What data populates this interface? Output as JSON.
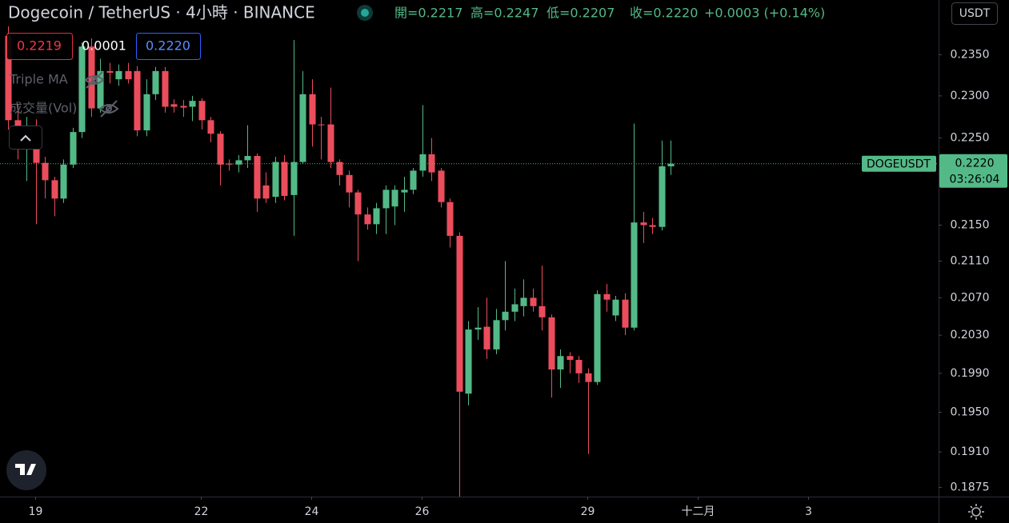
{
  "chart_data": {
    "type": "candlestick",
    "title": "Dogecoin / TetherUS · 4小時 · BINANCE",
    "legend_values": [
      "開=0.2217",
      "高=0.2247",
      "低=0.2207",
      "收=0.2220",
      "+0.0003 (+0.14%)"
    ],
    "up_color": "#53b987",
    "down_color": "#eb4d5c",
    "log_scale": true,
    "grid": false,
    "x": [
      0,
      1,
      2,
      3,
      4,
      5,
      6,
      7,
      8,
      9,
      10,
      11,
      12,
      13,
      14,
      15,
      16,
      17,
      18,
      19,
      20,
      21,
      22,
      23,
      24,
      25,
      26,
      27,
      28,
      29,
      30,
      31,
      32,
      33,
      34,
      35,
      36,
      37,
      38,
      39,
      40,
      41,
      42,
      43,
      44,
      45,
      46,
      47,
      48,
      49,
      50,
      51,
      52,
      53,
      54,
      55,
      56,
      57,
      58,
      59,
      60,
      61,
      62,
      63,
      64,
      65,
      66,
      67,
      68,
      69,
      70,
      71,
      72
    ],
    "open": [
      0.2373,
      0.2271,
      0.224,
      0.2264,
      0.2221,
      0.2201,
      0.218,
      0.2219,
      0.2257,
      0.236,
      0.2285,
      0.233,
      0.232,
      0.233,
      0.233,
      0.2259,
      0.2302,
      0.233,
      0.229,
      0.2288,
      0.2287,
      0.2294,
      0.2271,
      0.2255,
      0.222,
      0.2219,
      0.2224,
      0.2229,
      0.2195,
      0.2182,
      0.2222,
      0.2184,
      0.2222,
      0.2302,
      0.2266,
      0.2266,
      0.2222,
      0.2207,
      0.2187,
      0.2162,
      0.2151,
      0.2169,
      0.2171,
      0.2187,
      0.219,
      0.2212,
      0.2231,
      0.2212,
      0.2176,
      0.2138,
      0.1969,
      0.2036,
      0.2039,
      0.2015,
      0.2046,
      0.2055,
      0.2061,
      0.207,
      0.2061,
      0.2049,
      0.1994,
      0.2008,
      0.2004,
      0.199,
      0.1981,
      0.2074,
      0.2051,
      0.2068,
      0.2038,
      0.2153,
      0.215,
      0.2148,
      0.2217
    ],
    "high": [
      0.2385,
      0.229,
      0.2275,
      0.2272,
      0.2228,
      0.2205,
      0.2225,
      0.2262,
      0.2365,
      0.237,
      0.2345,
      0.234,
      0.2338,
      0.234,
      0.2336,
      0.232,
      0.2335,
      0.2335,
      0.2296,
      0.2295,
      0.23,
      0.2297,
      0.2275,
      0.2258,
      0.2225,
      0.223,
      0.2265,
      0.2232,
      0.221,
      0.2228,
      0.223,
      0.2368,
      0.233,
      0.232,
      0.2275,
      0.231,
      0.2225,
      0.2212,
      0.219,
      0.217,
      0.2175,
      0.2195,
      0.2195,
      0.2205,
      0.2215,
      0.2289,
      0.225,
      0.2215,
      0.218,
      0.2142,
      0.2045,
      0.206,
      0.207,
      0.2058,
      0.211,
      0.208,
      0.209,
      0.208,
      0.2105,
      0.2052,
      0.2015,
      0.2012,
      0.2008,
      0.1995,
      0.2078,
      0.2085,
      0.2072,
      0.2075,
      0.2267,
      0.2165,
      0.2158,
      0.2247,
      0.2247
    ],
    "low": [
      0.226,
      0.2225,
      0.22,
      0.2151,
      0.218,
      0.216,
      0.2175,
      0.2215,
      0.225,
      0.2275,
      0.228,
      0.2315,
      0.2312,
      0.2315,
      0.2252,
      0.2252,
      0.2295,
      0.228,
      0.228,
      0.2275,
      0.227,
      0.226,
      0.2245,
      0.2195,
      0.2212,
      0.221,
      0.2215,
      0.2165,
      0.2175,
      0.2175,
      0.2178,
      0.2138,
      0.222,
      0.224,
      0.2225,
      0.2215,
      0.2195,
      0.217,
      0.211,
      0.2145,
      0.214,
      0.214,
      0.215,
      0.2165,
      0.2185,
      0.2205,
      0.22,
      0.217,
      0.2125,
      0.1866,
      0.1957,
      0.2025,
      0.2005,
      0.201,
      0.2035,
      0.2045,
      0.205,
      0.2055,
      0.2035,
      0.1965,
      0.1975,
      0.199,
      0.198,
      0.1908,
      0.1978,
      0.2055,
      0.2045,
      0.203,
      0.2035,
      0.213,
      0.214,
      0.2144,
      0.2207
    ],
    "close": [
      0.2271,
      0.224,
      0.2262,
      0.2221,
      0.2201,
      0.218,
      0.2219,
      0.2257,
      0.236,
      0.2285,
      0.233,
      0.2328,
      0.233,
      0.232,
      0.2259,
      0.2302,
      0.233,
      0.2287,
      0.2287,
      0.2286,
      0.2294,
      0.2271,
      0.2255,
      0.2219,
      0.2219,
      0.2224,
      0.2229,
      0.218,
      0.218,
      0.2222,
      0.2183,
      0.2222,
      0.2302,
      0.2266,
      0.2265,
      0.2222,
      0.2207,
      0.2187,
      0.2162,
      0.2151,
      0.2169,
      0.219,
      0.219,
      0.219,
      0.2212,
      0.2231,
      0.221,
      0.2176,
      0.2138,
      0.1971,
      0.2036,
      0.2038,
      0.2015,
      0.2046,
      0.2055,
      0.2063,
      0.207,
      0.2061,
      0.2049,
      0.1994,
      0.2008,
      0.2004,
      0.199,
      0.1981,
      0.2074,
      0.2068,
      0.2068,
      0.2038,
      0.2153,
      0.215,
      0.2148,
      0.2217,
      0.222
    ],
    "xlim": [
      -0.87,
      101.13
    ],
    "xticks": [
      {
        "value": 3,
        "label": "19"
      },
      {
        "value": 21,
        "label": "22"
      },
      {
        "value": 33,
        "label": "24"
      },
      {
        "value": 45,
        "label": "26"
      },
      {
        "value": 63,
        "label": "29"
      },
      {
        "value": 75,
        "label": "十二月"
      },
      {
        "value": 87,
        "label": "3"
      }
    ],
    "ylim": [
      0.1866,
      0.2418
    ],
    "yticks": [
      {
        "value": 0.235,
        "label": "0.2350"
      },
      {
        "value": 0.23,
        "label": "0.2300"
      },
      {
        "value": 0.225,
        "label": "0.2250"
      },
      {
        "value": 0.215,
        "label": "0.2150"
      },
      {
        "value": 0.211,
        "label": "0.2110"
      },
      {
        "value": 0.207,
        "label": "0.2070"
      },
      {
        "value": 0.203,
        "label": "0.2030"
      },
      {
        "value": 0.199,
        "label": "0.1990"
      },
      {
        "value": 0.195,
        "label": "0.1950"
      },
      {
        "value": 0.191,
        "label": "0.1910"
      },
      {
        "value": 0.1875,
        "label": "0.1875"
      }
    ],
    "price_tag": {
      "symbol": "DOGEUSDT",
      "price": "0.2220",
      "countdown": "03:26:04"
    },
    "currency": "USDT",
    "crosshair_values": [
      "0.2219",
      "0.0001",
      "0.2220"
    ],
    "indicators": [
      "Triple MA",
      "成交量(Vol)"
    ]
  }
}
